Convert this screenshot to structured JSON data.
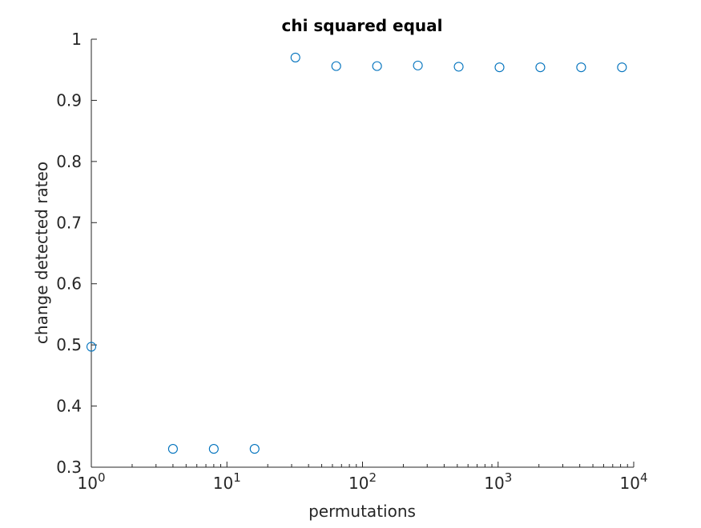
{
  "chart_data": {
    "type": "scatter",
    "title": "chi squared equal",
    "xlabel": "permutations",
    "ylabel": "change detected rateo",
    "xscale": "log",
    "xlim": [
      1,
      10000
    ],
    "ylim": [
      0.3,
      1.0
    ],
    "grid": false,
    "legend": "none",
    "marker": "open-circle",
    "marker_color": "#0072BD",
    "x_ticks": [
      {
        "value": 1,
        "base": "10",
        "exp": "0"
      },
      {
        "value": 10,
        "base": "10",
        "exp": "1"
      },
      {
        "value": 100,
        "base": "10",
        "exp": "2"
      },
      {
        "value": 1000,
        "base": "10",
        "exp": "3"
      },
      {
        "value": 10000,
        "base": "10",
        "exp": "4"
      }
    ],
    "y_ticks": [
      {
        "value": 0.3,
        "label": "0.3"
      },
      {
        "value": 0.4,
        "label": "0.4"
      },
      {
        "value": 0.5,
        "label": "0.5"
      },
      {
        "value": 0.6,
        "label": "0.6"
      },
      {
        "value": 0.7,
        "label": "0.7"
      },
      {
        "value": 0.8,
        "label": "0.8"
      },
      {
        "value": 0.9,
        "label": "0.9"
      },
      {
        "value": 1.0,
        "label": "1"
      }
    ],
    "x": [
      1,
      4,
      8,
      16,
      32,
      64,
      128,
      256,
      512,
      1024,
      2048,
      4096,
      8192
    ],
    "y": [
      0.497,
      0.33,
      0.33,
      0.33,
      0.97,
      0.956,
      0.956,
      0.957,
      0.955,
      0.954,
      0.954,
      0.954,
      0.954
    ]
  }
}
